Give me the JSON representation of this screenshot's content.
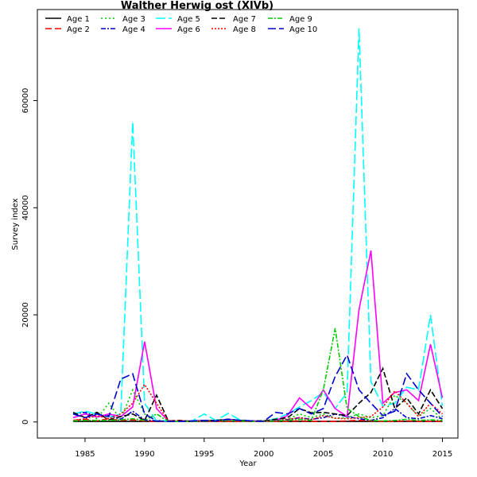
{
  "chart_data": {
    "type": "line",
    "title": "Walther  Herwig    ost  (XIVb)",
    "xlabel": "Year",
    "ylabel": "Survey index",
    "xlim": [
      1981,
      2016.3
    ],
    "ylim": [
      -3000,
      77000
    ],
    "xticks": [
      1985,
      1990,
      1995,
      2000,
      2005,
      2010,
      2015
    ],
    "yticks": [
      0,
      20000,
      40000,
      60000
    ],
    "grid": false,
    "legend_position": "top-left",
    "x": [
      1984,
      1985,
      1986,
      1987,
      1988,
      1989,
      1990,
      1991,
      1992,
      1993,
      1994,
      1995,
      1996,
      1997,
      1998,
      1999,
      2000,
      2001,
      2002,
      2003,
      2004,
      2005,
      2006,
      2007,
      2008,
      2009,
      2010,
      2011,
      2012,
      2013,
      2014,
      2015
    ],
    "series": [
      {
        "name": "Age 1",
        "color": "#000000",
        "dash": "",
        "values": [
          100,
          100,
          100,
          100,
          100,
          100,
          100,
          100,
          100,
          100,
          100,
          100,
          100,
          100,
          100,
          100,
          100,
          100,
          100,
          100,
          100,
          100,
          100,
          100,
          100,
          100,
          100,
          100,
          100,
          100,
          100,
          100
        ]
      },
      {
        "name": "Age 2",
        "color": "#ff0000",
        "dash": "8,4",
        "values": [
          300,
          500,
          200,
          600,
          300,
          400,
          200,
          100,
          100,
          100,
          100,
          100,
          100,
          100,
          100,
          100,
          100,
          100,
          100,
          200,
          100,
          100,
          100,
          200,
          300,
          200,
          100,
          100,
          200,
          100,
          100,
          100
        ]
      },
      {
        "name": "Age 3",
        "color": "#00cd00",
        "dash": "2,3",
        "values": [
          800,
          1500,
          600,
          3500,
          500,
          6000,
          1500,
          300,
          200,
          100,
          200,
          300,
          200,
          300,
          200,
          100,
          200,
          300,
          500,
          1500,
          800,
          1500,
          700,
          800,
          1500,
          800,
          1200,
          5000,
          3500,
          1000,
          2500,
          500
        ]
      },
      {
        "name": "Age 4",
        "color": "#0000cd",
        "dash": "6,2,2,2",
        "values": [
          1500,
          1800,
          1000,
          1200,
          500,
          2000,
          400,
          200,
          100,
          100,
          100,
          200,
          200,
          500,
          300,
          200,
          200,
          300,
          400,
          800,
          500,
          800,
          1500,
          1000,
          600,
          300,
          800,
          2500,
          800,
          600,
          1200,
          600
        ]
      },
      {
        "name": "Age 5",
        "color": "#00ffff",
        "dash": "12,4",
        "values": [
          1500,
          2000,
          1500,
          900,
          1500,
          56000,
          3500,
          200,
          200,
          100,
          200,
          1500,
          300,
          1600,
          400,
          200,
          100,
          600,
          1500,
          2800,
          4000,
          5500,
          2500,
          5500,
          73500,
          7500,
          3000,
          3500,
          6500,
          6000,
          20000,
          3000
        ]
      },
      {
        "name": "Age 6",
        "color": "#ff00ff",
        "dash": "",
        "values": [
          800,
          1500,
          900,
          1500,
          1000,
          2800,
          15000,
          2500,
          200,
          100,
          200,
          300,
          200,
          400,
          300,
          200,
          100,
          300,
          1200,
          4500,
          2500,
          6000,
          2500,
          1000,
          21000,
          32000,
          3500,
          5500,
          6000,
          4000,
          14500,
          4500
        ]
      },
      {
        "name": "Age 7",
        "color": "#000000",
        "dash": "7,3",
        "values": [
          1800,
          800,
          1800,
          400,
          1000,
          1500,
          300,
          5000,
          200,
          300,
          100,
          300,
          300,
          500,
          300,
          200,
          200,
          500,
          800,
          2500,
          1700,
          1800,
          1500,
          1200,
          3500,
          5500,
          10000,
          2500,
          4500,
          1500,
          6000,
          2500
        ]
      },
      {
        "name": "Age 8",
        "color": "#ff0000",
        "dash": "2,2",
        "values": [
          300,
          600,
          1200,
          600,
          1500,
          3500,
          7000,
          3500,
          200,
          300,
          100,
          300,
          200,
          200,
          100,
          100,
          100,
          200,
          500,
          800,
          400,
          1200,
          700,
          600,
          800,
          1000,
          2800,
          5800,
          3500,
          1000,
          3500,
          1500
        ]
      },
      {
        "name": "Age 9",
        "color": "#00cd00",
        "dash": "6,2,2,2",
        "values": [
          200,
          300,
          300,
          300,
          400,
          600,
          300,
          1500,
          100,
          100,
          100,
          200,
          200,
          300,
          200,
          100,
          100,
          200,
          300,
          500,
          300,
          6000,
          17500,
          2500,
          1000,
          300,
          200,
          300,
          500,
          300,
          400,
          300
        ]
      },
      {
        "name": "Age 10",
        "color": "#0000cd",
        "dash": "10,4",
        "values": [
          1500,
          800,
          1500,
          1000,
          8000,
          9000,
          1500,
          200,
          100,
          100,
          200,
          300,
          200,
          500,
          300,
          200,
          100,
          1800,
          1500,
          2500,
          1500,
          2500,
          8500,
          12500,
          6000,
          3500,
          1200,
          2000,
          9000,
          6000,
          3500,
          1000
        ]
      }
    ]
  }
}
